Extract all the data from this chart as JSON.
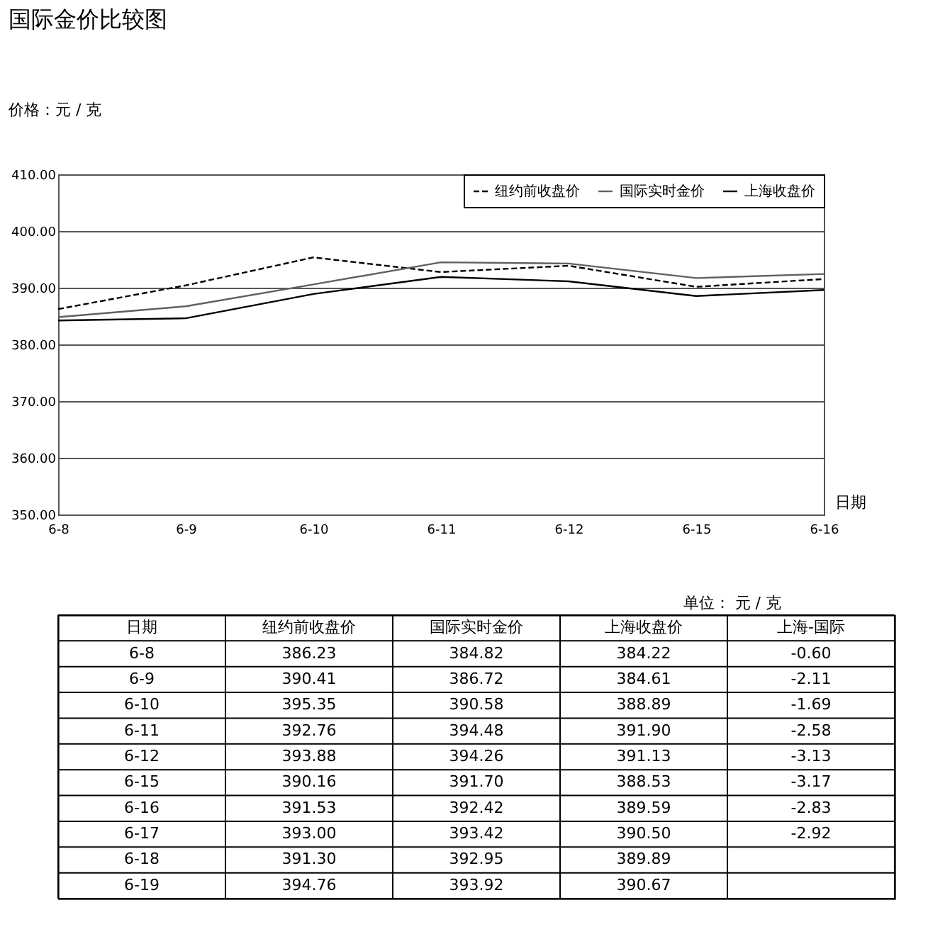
{
  "chart_data": [
    {
      "type": "line",
      "title": "国际金价比较图",
      "ylabel": "价格：元 / 克",
      "xlabel": "日期",
      "categories": [
        "6-8",
        "6-9",
        "6-10",
        "6-11",
        "6-12",
        "6-15",
        "6-16"
      ],
      "series": [
        {
          "name": "纽约前收盘价",
          "color": "#000000",
          "line_style": "dashed",
          "values": [
            386.23,
            390.41,
            395.35,
            392.76,
            393.88,
            390.16,
            391.53
          ]
        },
        {
          "name": "国际实时金价",
          "color": "#606060",
          "line_style": "solid",
          "values": [
            384.82,
            386.72,
            390.58,
            394.48,
            394.26,
            391.7,
            392.42
          ]
        },
        {
          "name": "上海收盘价",
          "color": "#000000",
          "line_style": "solid",
          "values": [
            384.22,
            384.61,
            388.89,
            391.9,
            391.13,
            388.53,
            389.59
          ]
        }
      ],
      "ylim": [
        350,
        410
      ],
      "yticks": [
        {
          "value": 350,
          "label": "350.00"
        },
        {
          "value": 360,
          "label": "360.00"
        },
        {
          "value": 370,
          "label": "370.00"
        },
        {
          "value": 380,
          "label": "380.00"
        },
        {
          "value": 390,
          "label": "390.00"
        },
        {
          "value": 400,
          "label": "400.00"
        },
        {
          "value": 410,
          "label": "410.00"
        }
      ],
      "grid": "y",
      "legend": "top right",
      "marker": "none"
    },
    {
      "type": "other",
      "xlabel": "日期",
      "annotations": [
        "单位： 元 / 克"
      ],
      "categories": [
        "6-8",
        "6-9",
        "6-10",
        "6-11",
        "6-12",
        "6-15",
        "6-16",
        "6-17",
        "6-18",
        "6-19"
      ],
      "series": [
        {
          "name": "纽约前收盘价",
          "values": [
            386.23,
            390.41,
            395.35,
            392.76,
            393.88,
            390.16,
            391.53,
            393.0,
            391.3,
            394.76
          ],
          "value_labels": [
            "386.23",
            "390.41",
            "395.35",
            "392.76",
            "393.88",
            "390.16",
            "391.53",
            "393.00",
            "391.30",
            "394.76"
          ]
        },
        {
          "name": "国际实时金价",
          "values": [
            384.82,
            386.72,
            390.58,
            394.48,
            394.26,
            391.7,
            392.42,
            393.42,
            392.95,
            393.92
          ],
          "value_labels": [
            "384.82",
            "386.72",
            "390.58",
            "394.48",
            "394.26",
            "391.70",
            "392.42",
            "393.42",
            "392.95",
            "393.92"
          ]
        },
        {
          "name": "上海收盘价",
          "values": [
            384.22,
            384.61,
            388.89,
            391.9,
            391.13,
            388.53,
            389.59,
            390.5,
            389.89,
            390.67
          ],
          "value_labels": [
            "384.22",
            "384.61",
            "388.89",
            "391.90",
            "391.13",
            "388.53",
            "389.59",
            "390.50",
            "389.89",
            "390.67"
          ]
        },
        {
          "name": "上海-国际",
          "values": [
            -0.6,
            -2.11,
            -1.69,
            -2.58,
            -3.13,
            -3.17,
            -2.83,
            -2.92,
            null,
            null
          ],
          "value_labels": [
            "-0.60",
            "-2.11",
            "-1.69",
            "-2.58",
            "-3.13",
            "-3.17",
            "-2.83",
            "-2.92",
            null,
            null
          ]
        }
      ]
    }
  ]
}
